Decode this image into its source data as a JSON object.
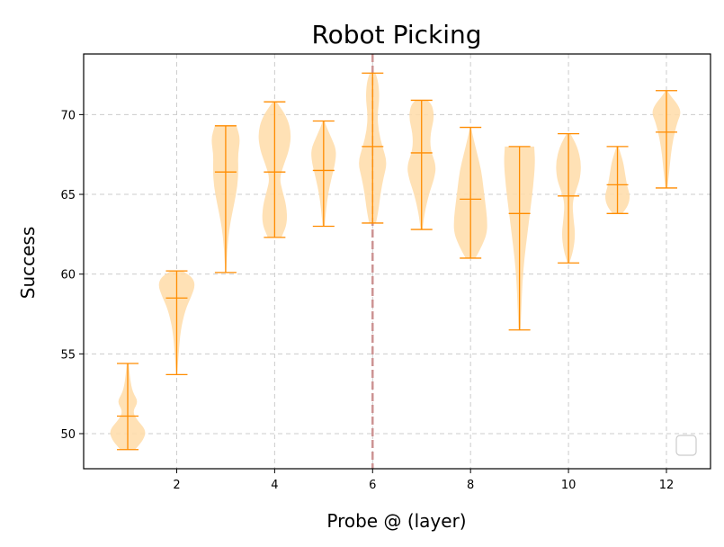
{
  "chart_data": {
    "type": "violin",
    "title": "Robot Picking",
    "xlabel": "Probe @ (layer)",
    "ylabel": "Success",
    "xlim": [
      0.1,
      12.9
    ],
    "ylim": [
      47.8,
      73.8
    ],
    "xticks": [
      2,
      4,
      6,
      8,
      10,
      12
    ],
    "yticks": [
      50,
      55,
      60,
      65,
      70
    ],
    "grid": true,
    "reference_line": {
      "x": 6,
      "color": "#c98a8a",
      "style": "dashed"
    },
    "legend": {
      "placement": "lower-right",
      "entries": []
    },
    "colors": {
      "body": "#ffdca8",
      "lines": "#ff8c00"
    },
    "violins": [
      {
        "x": 1,
        "min": 49.0,
        "median": 51.1,
        "max": 54.4,
        "profile": [
          [
            49.0,
            0.15
          ],
          [
            49.6,
            0.32
          ],
          [
            50.2,
            0.38
          ],
          [
            50.9,
            0.18
          ],
          [
            51.4,
            0.1
          ],
          [
            52.0,
            0.22
          ],
          [
            52.6,
            0.1
          ],
          [
            53.4,
            0.05
          ],
          [
            54.4,
            0.02
          ]
        ]
      },
      {
        "x": 2,
        "min": 53.7,
        "median": 58.5,
        "max": 60.2,
        "profile": [
          [
            53.7,
            0.01
          ],
          [
            55.0,
            0.04
          ],
          [
            56.5,
            0.08
          ],
          [
            57.8,
            0.18
          ],
          [
            58.6,
            0.3
          ],
          [
            59.3,
            0.38
          ],
          [
            59.8,
            0.32
          ],
          [
            60.2,
            0.12
          ]
        ]
      },
      {
        "x": 3,
        "min": 60.1,
        "median": 66.4,
        "max": 69.3,
        "profile": [
          [
            60.1,
            0.01
          ],
          [
            61.5,
            0.03
          ],
          [
            63.0,
            0.08
          ],
          [
            64.5,
            0.18
          ],
          [
            65.5,
            0.24
          ],
          [
            66.5,
            0.26
          ],
          [
            67.5,
            0.25
          ],
          [
            68.5,
            0.3
          ],
          [
            69.3,
            0.22
          ]
        ]
      },
      {
        "x": 4,
        "min": 62.3,
        "median": 66.4,
        "max": 70.8,
        "profile": [
          [
            62.3,
            0.14
          ],
          [
            63.2,
            0.26
          ],
          [
            64.3,
            0.24
          ],
          [
            65.2,
            0.16
          ],
          [
            66.0,
            0.1
          ],
          [
            66.8,
            0.18
          ],
          [
            67.8,
            0.3
          ],
          [
            68.8,
            0.34
          ],
          [
            69.8,
            0.26
          ],
          [
            70.8,
            0.04
          ]
        ]
      },
      {
        "x": 5,
        "min": 63.0,
        "median": 66.5,
        "max": 69.6,
        "profile": [
          [
            63.0,
            0.02
          ],
          [
            64.0,
            0.05
          ],
          [
            65.0,
            0.09
          ],
          [
            66.0,
            0.16
          ],
          [
            67.0,
            0.24
          ],
          [
            67.8,
            0.26
          ],
          [
            68.6,
            0.15
          ],
          [
            69.3,
            0.05
          ],
          [
            69.6,
            0.02
          ]
        ]
      },
      {
        "x": 6,
        "min": 63.2,
        "median": 68.0,
        "max": 72.6,
        "profile": [
          [
            63.2,
            0.07
          ],
          [
            64.0,
            0.12
          ],
          [
            65.0,
            0.16
          ],
          [
            66.0,
            0.22
          ],
          [
            67.0,
            0.3
          ],
          [
            68.0,
            0.2
          ],
          [
            69.0,
            0.12
          ],
          [
            70.0,
            0.1
          ],
          [
            71.0,
            0.14
          ],
          [
            72.0,
            0.12
          ],
          [
            72.6,
            0.06
          ]
        ]
      },
      {
        "x": 7,
        "min": 62.8,
        "median": 67.6,
        "max": 70.9,
        "profile": [
          [
            62.8,
            0.02
          ],
          [
            63.8,
            0.06
          ],
          [
            65.0,
            0.15
          ],
          [
            66.0,
            0.26
          ],
          [
            66.8,
            0.3
          ],
          [
            67.8,
            0.18
          ],
          [
            68.8,
            0.18
          ],
          [
            69.8,
            0.26
          ],
          [
            70.6,
            0.22
          ],
          [
            70.9,
            0.12
          ]
        ]
      },
      {
        "x": 8,
        "min": 61.0,
        "median": 64.7,
        "max": 69.2,
        "profile": [
          [
            61.0,
            0.1
          ],
          [
            61.8,
            0.24
          ],
          [
            62.6,
            0.34
          ],
          [
            63.5,
            0.34
          ],
          [
            64.5,
            0.3
          ],
          [
            65.5,
            0.26
          ],
          [
            66.5,
            0.22
          ],
          [
            67.5,
            0.14
          ],
          [
            68.5,
            0.06
          ],
          [
            69.2,
            0.01
          ]
        ]
      },
      {
        "x": 9,
        "min": 56.5,
        "median": 63.8,
        "max": 68.0,
        "profile": [
          [
            56.5,
            0.02
          ],
          [
            58.0,
            0.04
          ],
          [
            59.5,
            0.06
          ],
          [
            61.0,
            0.1
          ],
          [
            62.5,
            0.16
          ],
          [
            64.0,
            0.22
          ],
          [
            65.5,
            0.28
          ],
          [
            67.0,
            0.32
          ],
          [
            68.0,
            0.3
          ]
        ]
      },
      {
        "x": 10,
        "min": 60.7,
        "median": 64.9,
        "max": 68.8,
        "profile": [
          [
            60.7,
            0.02
          ],
          [
            61.5,
            0.1
          ],
          [
            62.5,
            0.14
          ],
          [
            63.5,
            0.1
          ],
          [
            64.5,
            0.08
          ],
          [
            65.3,
            0.16
          ],
          [
            66.0,
            0.24
          ],
          [
            67.0,
            0.26
          ],
          [
            68.0,
            0.18
          ],
          [
            68.8,
            0.04
          ]
        ]
      },
      {
        "x": 11,
        "min": 63.8,
        "median": 65.6,
        "max": 68.0,
        "profile": [
          [
            63.8,
            0.1
          ],
          [
            64.3,
            0.22
          ],
          [
            64.9,
            0.26
          ],
          [
            65.5,
            0.2
          ],
          [
            66.2,
            0.16
          ],
          [
            67.0,
            0.12
          ],
          [
            67.6,
            0.06
          ],
          [
            68.0,
            0.02
          ]
        ]
      },
      {
        "x": 12,
        "min": 65.4,
        "median": 68.9,
        "max": 71.5,
        "profile": [
          [
            65.4,
            0.02
          ],
          [
            66.5,
            0.06
          ],
          [
            67.5,
            0.09
          ],
          [
            68.5,
            0.14
          ],
          [
            69.5,
            0.22
          ],
          [
            70.1,
            0.3
          ],
          [
            70.6,
            0.24
          ],
          [
            71.2,
            0.08
          ],
          [
            71.5,
            0.02
          ]
        ]
      }
    ]
  }
}
